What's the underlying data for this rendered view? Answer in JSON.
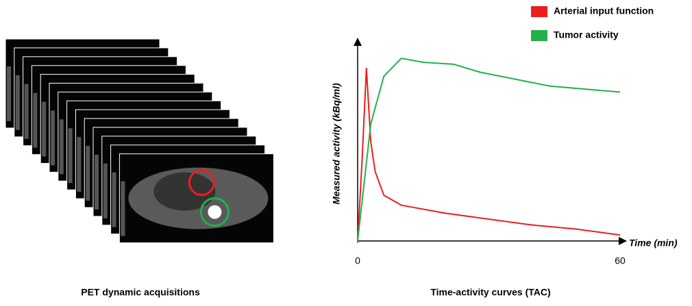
{
  "chart_data": {
    "type": "line",
    "left_caption": "PET dynamic acquisitions",
    "title": "Time-activity curves (TAC)",
    "x_label": "Time (min)",
    "y_label": "Measured activity (kBq/ml)",
    "xlim": [
      0,
      60
    ],
    "xticks": [
      0,
      60
    ],
    "ylim": [
      0,
      100
    ],
    "series": [
      {
        "name": "Arterial input function",
        "color": "#ee1c1c",
        "x": [
          0,
          1,
          2,
          3,
          4,
          6,
          10,
          20,
          30,
          40,
          50,
          60
        ],
        "values": [
          0,
          40,
          87,
          50,
          35,
          23,
          18,
          14,
          11,
          8,
          6,
          3
        ]
      },
      {
        "name": "Tumor activity",
        "color": "#22b04a",
        "x": [
          0,
          3,
          6,
          10,
          15,
          22,
          28,
          44,
          60
        ],
        "values": [
          0,
          59,
          83,
          92,
          90,
          89,
          85,
          78,
          75
        ]
      }
    ]
  }
}
